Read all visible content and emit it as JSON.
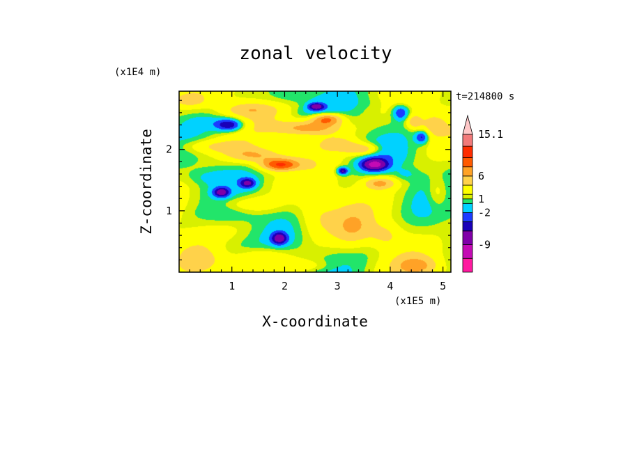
{
  "chart_data": {
    "type": "heatmap",
    "title": "zonal velocity",
    "xlabel": "X-coordinate",
    "ylabel": "Z-coordinate",
    "x_unit": "(x1E5 m)",
    "y_unit": "(x1E4 m)",
    "time_label": "t=214800 s",
    "xlim": [
      0,
      5.15
    ],
    "ylim": [
      0,
      2.95
    ],
    "x_ticks": [
      1,
      2,
      3,
      4,
      5
    ],
    "y_ticks": [
      1,
      2
    ],
    "colorbar": {
      "levels": [
        -15,
        -12,
        -9,
        -6,
        -4,
        -2,
        0,
        1,
        2,
        4,
        6,
        8,
        10,
        12.5,
        15.1
      ],
      "labels": [
        "15.1",
        "6",
        "1",
        "-2",
        "-9"
      ],
      "colors": [
        "#ff1aa0",
        "#c40ab4",
        "#8000a8",
        "#1a00b8",
        "#1c3cff",
        "#00d2ff",
        "#22e56a",
        "#d8f000",
        "#ffff00",
        "#ffd24a",
        "#ffa226",
        "#ff5a00",
        "#ff2d00",
        "#f27a7a",
        "#ffc8c8"
      ],
      "extend": "max"
    },
    "features": [
      {
        "cx": 0.3,
        "cz": 0.2,
        "sx": 0.45,
        "sz": 0.25,
        "value": 2.0
      },
      {
        "cx": 0.9,
        "cz": 0.4,
        "sx": 0.5,
        "sz": 0.2,
        "value": -1.5
      },
      {
        "cx": 1.6,
        "cz": 0.25,
        "sx": 0.5,
        "sz": 0.15,
        "value": 3.0
      },
      {
        "cx": 1.9,
        "cz": 0.55,
        "sx": 0.15,
        "sz": 0.1,
        "value": -8.0
      },
      {
        "cx": 2.3,
        "cz": 0.1,
        "sx": 0.6,
        "sz": 0.1,
        "value": 2.0
      },
      {
        "cx": 2.6,
        "cz": 0.9,
        "sx": 0.4,
        "sz": 0.35,
        "value": 2.5
      },
      {
        "cx": 3.3,
        "cz": 0.7,
        "sx": 0.35,
        "sz": 0.3,
        "value": 3.0
      },
      {
        "cx": 3.6,
        "cz": 0.35,
        "sx": 0.5,
        "sz": 0.22,
        "value": -0.5
      },
      {
        "cx": 3.9,
        "cz": 0.6,
        "sx": 0.3,
        "sz": 0.2,
        "value": 2.5
      },
      {
        "cx": 4.5,
        "cz": 0.1,
        "sx": 0.4,
        "sz": 0.15,
        "value": 4.0
      },
      {
        "cx": 4.7,
        "cz": 0.8,
        "sx": 0.4,
        "sz": 0.5,
        "value": -0.5
      },
      {
        "cx": 1.0,
        "cz": 0.95,
        "sx": 0.6,
        "sz": 0.15,
        "value": -1.5
      },
      {
        "cx": 0.8,
        "cz": 1.3,
        "sx": 0.15,
        "sz": 0.08,
        "value": -8.0
      },
      {
        "cx": 1.3,
        "cz": 1.45,
        "sx": 0.15,
        "sz": 0.08,
        "value": -7.0
      },
      {
        "cx": 0.6,
        "cz": 1.55,
        "sx": 0.5,
        "sz": 0.12,
        "value": -1.5
      },
      {
        "cx": 1.3,
        "cz": 1.1,
        "sx": 0.6,
        "sz": 0.15,
        "value": 2.5
      },
      {
        "cx": 0.6,
        "cz": 2.05,
        "sx": 0.7,
        "sz": 0.12,
        "value": 3.0
      },
      {
        "cx": 1.4,
        "cz": 1.9,
        "sx": 0.5,
        "sz": 0.12,
        "value": 4.5
      },
      {
        "cx": 1.9,
        "cz": 1.75,
        "sx": 0.35,
        "sz": 0.1,
        "value": 8.0
      },
      {
        "cx": 2.2,
        "cz": 1.6,
        "sx": 0.3,
        "sz": 0.1,
        "value": -1.5
      },
      {
        "cx": 0.95,
        "cz": 2.4,
        "sx": 0.25,
        "sz": 0.1,
        "value": -8.0
      },
      {
        "cx": 0.5,
        "cz": 2.45,
        "sx": 0.35,
        "sz": 0.12,
        "value": -1.5
      },
      {
        "cx": 1.3,
        "cz": 2.65,
        "sx": 0.5,
        "sz": 0.12,
        "value": 3.0
      },
      {
        "cx": 2.5,
        "cz": 2.35,
        "sx": 0.6,
        "sz": 0.12,
        "value": 6.0
      },
      {
        "cx": 2.8,
        "cz": 2.5,
        "sx": 0.3,
        "sz": 0.1,
        "value": 8.0
      },
      {
        "cx": 2.6,
        "cz": 2.6,
        "sx": 0.4,
        "sz": 0.1,
        "value": -1.5
      },
      {
        "cx": 2.6,
        "cz": 2.7,
        "sx": 0.15,
        "sz": 0.06,
        "value": -8.0
      },
      {
        "cx": 2.0,
        "cz": 2.85,
        "sx": 0.5,
        "sz": 0.12,
        "value": -1.5
      },
      {
        "cx": 3.0,
        "cz": 2.1,
        "sx": 0.4,
        "sz": 0.12,
        "value": 3.0
      },
      {
        "cx": 3.5,
        "cz": 2.0,
        "sx": 0.35,
        "sz": 0.1,
        "value": 5.0
      },
      {
        "cx": 3.1,
        "cz": 1.65,
        "sx": 0.1,
        "sz": 0.06,
        "value": -8.0
      },
      {
        "cx": 3.7,
        "cz": 1.75,
        "sx": 0.25,
        "sz": 0.1,
        "value": -10.0
      },
      {
        "cx": 3.9,
        "cz": 1.9,
        "sx": 0.4,
        "sz": 0.2,
        "value": -1.5
      },
      {
        "cx": 3.8,
        "cz": 1.45,
        "sx": 0.3,
        "sz": 0.1,
        "value": 5.0
      },
      {
        "cx": 4.3,
        "cz": 1.6,
        "sx": 0.2,
        "sz": 0.1,
        "value": -1.5
      },
      {
        "cx": 4.2,
        "cz": 2.6,
        "sx": 0.15,
        "sz": 0.12,
        "value": -6.0
      },
      {
        "cx": 4.45,
        "cz": 2.45,
        "sx": 0.15,
        "sz": 0.12,
        "value": 4.0
      },
      {
        "cx": 4.6,
        "cz": 2.2,
        "sx": 0.12,
        "sz": 0.1,
        "value": -6.0
      },
      {
        "cx": 4.8,
        "cz": 2.4,
        "sx": 0.25,
        "sz": 0.2,
        "value": 3.0
      },
      {
        "cx": 3.7,
        "cz": 2.75,
        "sx": 0.5,
        "sz": 0.12,
        "value": -0.5
      },
      {
        "cx": 4.9,
        "cz": 1.3,
        "sx": 0.2,
        "sz": 0.25,
        "value": 3.0
      },
      {
        "cx": 0.2,
        "cz": 2.8,
        "sx": 0.3,
        "sz": 0.1,
        "value": 3.0
      }
    ]
  }
}
